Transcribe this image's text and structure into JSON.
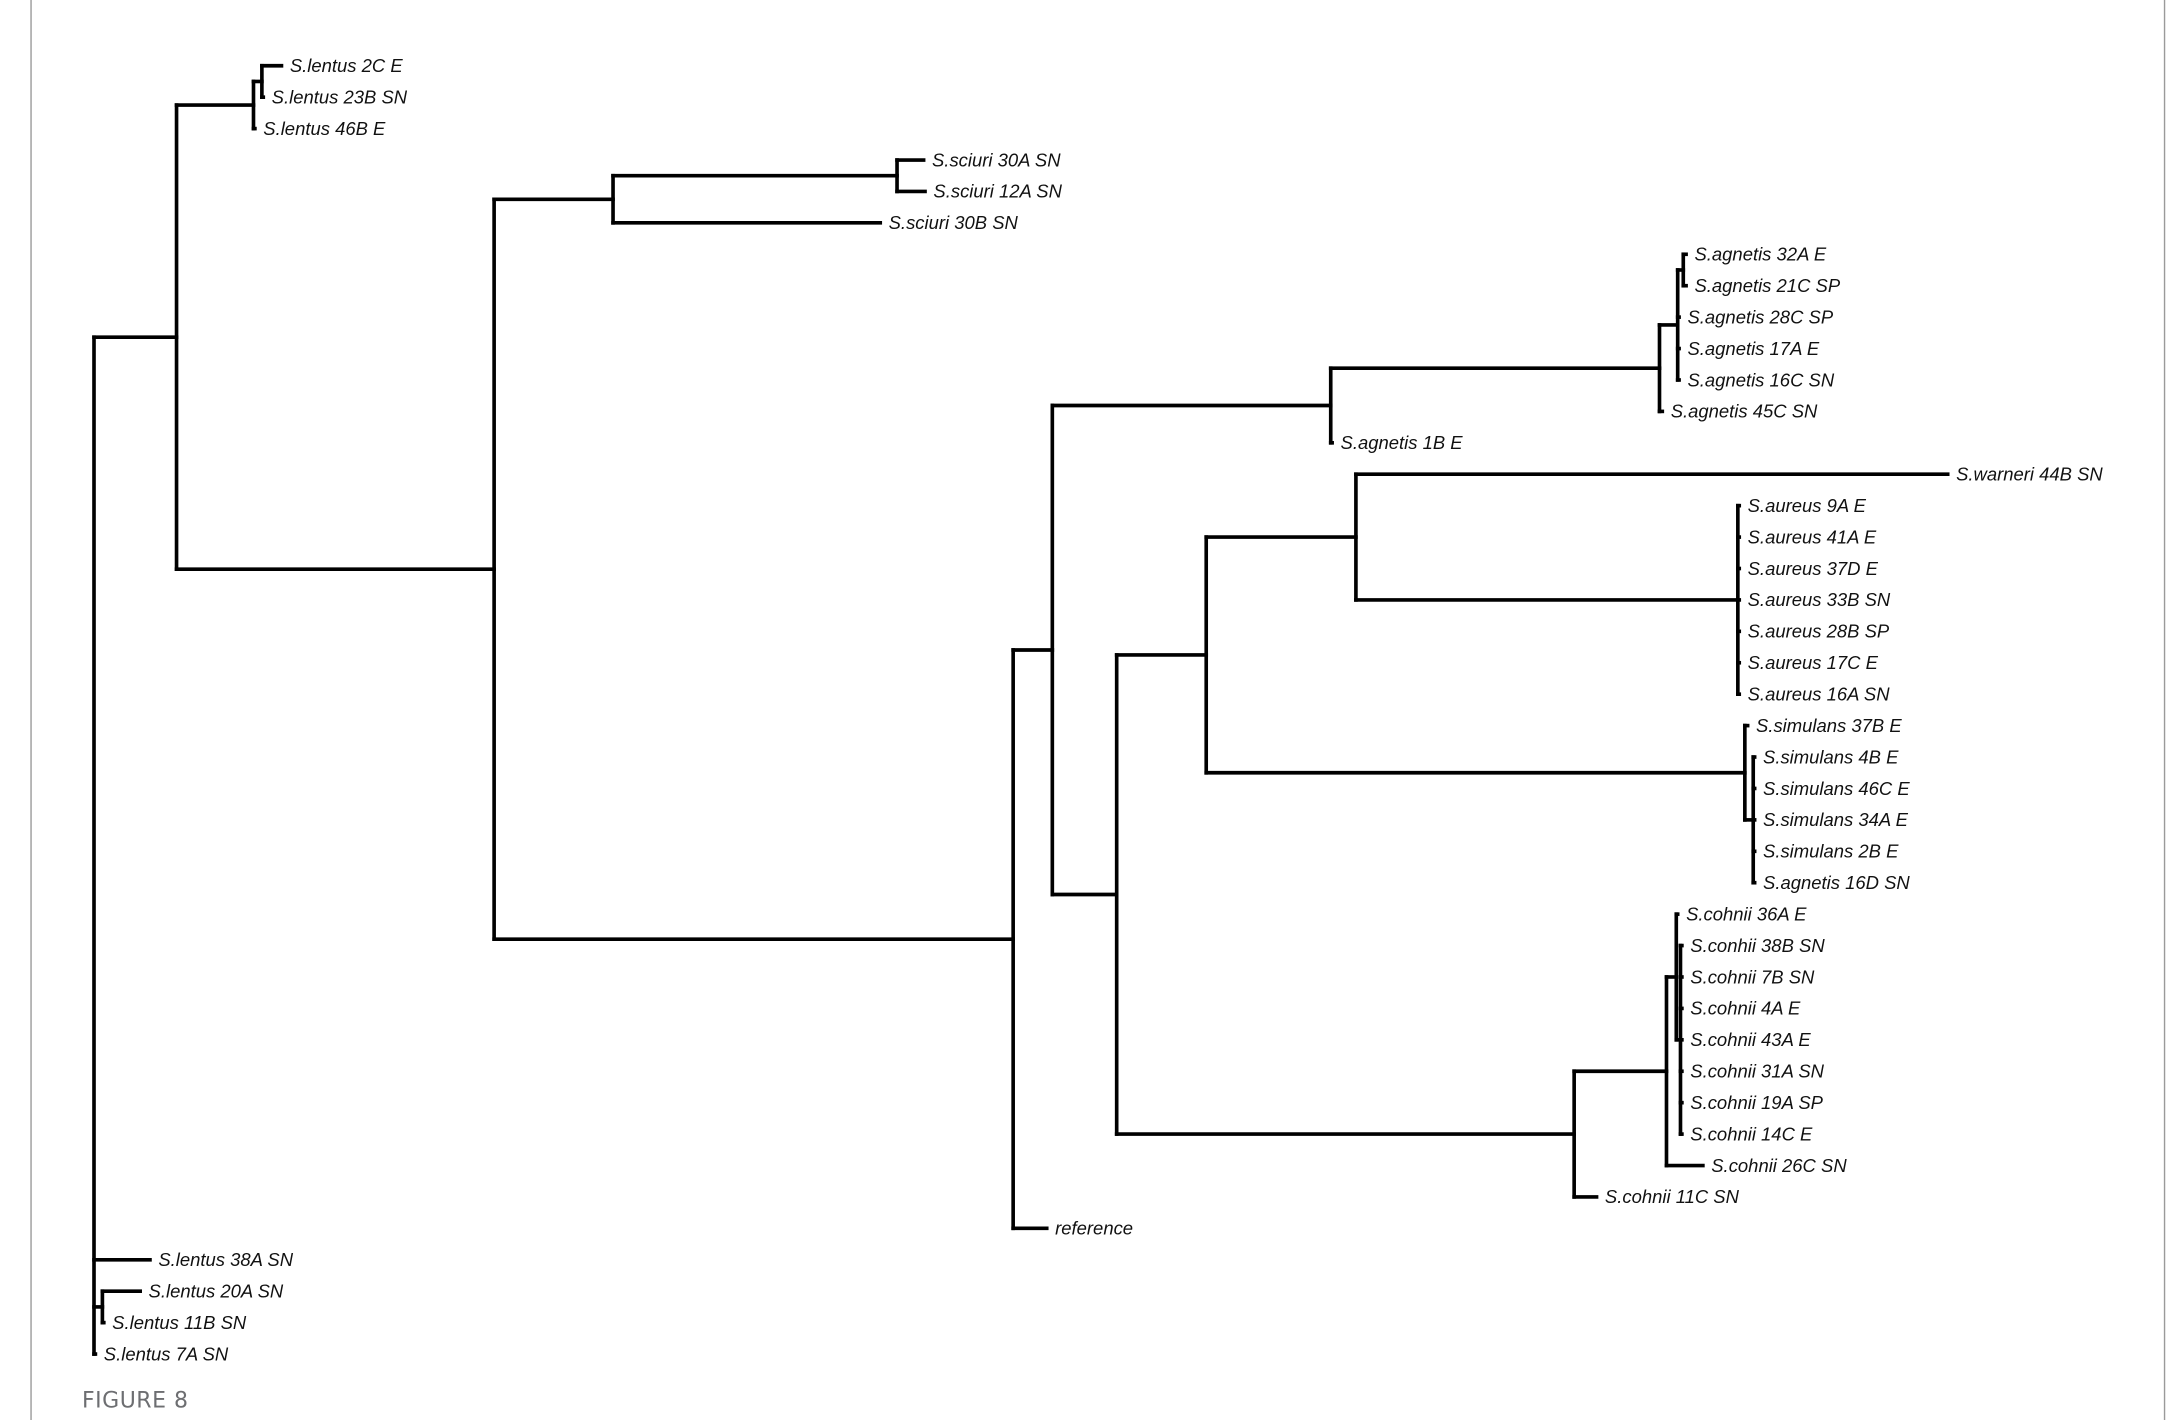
{
  "caption": "FIGURE 8",
  "colors": {
    "branch": "#000000",
    "caption": "#6d6e71",
    "frame": "#9a9a9a"
  },
  "chart_data": {
    "type": "dendrogram",
    "orientation": "left-to-right",
    "tree": {
      "depth": 0,
      "children": [
        {
          "depth": 0.059,
          "children": [
            {
              "depth": 0.114,
              "children": [
                {
                  "depth": 0.12,
                  "children": [
                    {
                      "name": "S.lentus 2C E",
                      "depth": 0.134
                    },
                    {
                      "name": "S.lentus 23B SN",
                      "depth": 0.121
                    }
                  ]
                },
                {
                  "name": "S.lentus 46B E",
                  "depth": 0.115
                }
              ]
            },
            {
              "depth": 0.286,
              "children": [
                {
                  "depth": 0.371,
                  "children": [
                    {
                      "depth": 0.574,
                      "children": [
                        {
                          "name": "S.sciuri 30A SN",
                          "depth": 0.593
                        },
                        {
                          "name": "S.sciuri 12A SN",
                          "depth": 0.594
                        }
                      ]
                    },
                    {
                      "name": "S.sciuri 30B SN",
                      "depth": 0.562
                    }
                  ]
                },
                {
                  "depth": 0.657,
                  "children": [
                    {
                      "depth": 0.685,
                      "children": [
                        {
                          "depth": 0.884,
                          "children": [
                            {
                              "depth": 1.119,
                              "children": [
                                {
                                  "depth": 1.132,
                                  "children": [
                                    {
                                      "depth": 1.136,
                                      "children": [
                                        {
                                          "name": "S.agnetis 32A E",
                                          "depth": 1.138
                                        },
                                        {
                                          "name": "S.agnetis 21C SP",
                                          "depth": 1.138
                                        }
                                      ]
                                    },
                                    {
                                      "name": "S.agnetis 28C SP",
                                      "depth": 1.133
                                    },
                                    {
                                      "name": "S.agnetis 17A E",
                                      "depth": 1.133
                                    },
                                    {
                                      "name": "S.agnetis 16C SN",
                                      "depth": 1.133
                                    }
                                  ]
                                },
                                {
                                  "name": "S.agnetis 45C SN",
                                  "depth": 1.121
                                }
                              ]
                            },
                            {
                              "name": "S.agnetis 1B E",
                              "depth": 0.885
                            }
                          ]
                        },
                        {
                          "depth": 0.731,
                          "children": [
                            {
                              "depth": 0.795,
                              "children": [
                                {
                                  "depth": 0.902,
                                  "children": [
                                    {
                                      "name": "S.warneri 44B SN",
                                      "depth": 1.325
                                    },
                                    {
                                      "depth": 1.175,
                                      "children": [
                                        {
                                          "name": "S.aureus 9A E",
                                          "depth": 1.176
                                        },
                                        {
                                          "name": "S.aureus 41A E",
                                          "depth": 1.176
                                        },
                                        {
                                          "name": "S.aureus 37D E",
                                          "depth": 1.176
                                        },
                                        {
                                          "name": "S.aureus 33B SN",
                                          "depth": 1.176
                                        },
                                        {
                                          "name": "S.aureus 28B SP",
                                          "depth": 1.176
                                        },
                                        {
                                          "name": "S.aureus 17C E",
                                          "depth": 1.176
                                        },
                                        {
                                          "name": "S.aureus 16A SN",
                                          "depth": 1.176
                                        }
                                      ]
                                    }
                                  ]
                                },
                                {
                                  "depth": 1.18,
                                  "children": [
                                    {
                                      "name": "S.simulans 37B E",
                                      "depth": 1.182
                                    },
                                    {
                                      "depth": 1.186,
                                      "children": [
                                        {
                                          "name": "S.simulans 4B E",
                                          "depth": 1.187
                                        },
                                        {
                                          "name": "S.simulans 46C E",
                                          "depth": 1.187
                                        },
                                        {
                                          "name": "S.simulans 34A E",
                                          "depth": 1.187
                                        },
                                        {
                                          "name": "S.simulans 2B E",
                                          "depth": 1.187
                                        },
                                        {
                                          "name": "S.agnetis 16D SN",
                                          "depth": 1.187
                                        }
                                      ]
                                    }
                                  ]
                                }
                              ]
                            },
                            {
                              "depth": 1.058,
                              "children": [
                                {
                                  "depth": 1.124,
                                  "children": [
                                    {
                                      "depth": 1.131,
                                      "children": [
                                        {
                                          "name": "S.cohnii 36A E",
                                          "depth": 1.132
                                        },
                                        {
                                          "depth": 1.134,
                                          "children": [
                                            {
                                              "name": "S.conhii 38B SN",
                                              "depth": 1.135
                                            },
                                            {
                                              "name": "S.cohnii 7B SN",
                                              "depth": 1.135
                                            },
                                            {
                                              "name": "S.cohnii 4A E",
                                              "depth": 1.135
                                            },
                                            {
                                              "name": "S.cohnii 43A E",
                                              "depth": 1.135
                                            },
                                            {
                                              "name": "S.cohnii 31A SN",
                                              "depth": 1.135
                                            },
                                            {
                                              "name": "S.cohnii 19A SP",
                                              "depth": 1.135
                                            },
                                            {
                                              "name": "S.cohnii 14C E",
                                              "depth": 1.135
                                            }
                                          ]
                                        }
                                      ]
                                    },
                                    {
                                      "name": "S.cohnii 26C SN",
                                      "depth": 1.15
                                    }
                                  ]
                                },
                                {
                                  "name": "S.cohnii 11C SN",
                                  "depth": 1.074
                                }
                              ]
                            }
                          ]
                        }
                      ]
                    },
                    {
                      "name": "reference",
                      "depth": 0.681
                    }
                  ]
                }
              ]
            }
          ]
        },
        {
          "name": "S.lentus 38A SN",
          "depth": 0.04
        },
        {
          "depth": 0.006,
          "children": [
            {
              "name": "S.lentus 20A SN",
              "depth": 0.033
            },
            {
              "name": "S.lentus 11B SN",
              "depth": 0.007
            }
          ]
        },
        {
          "name": "S.lentus 7A SN",
          "depth": 0.001
        }
      ]
    }
  }
}
